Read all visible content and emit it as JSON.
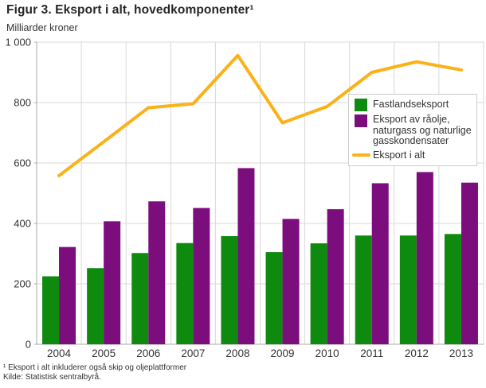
{
  "figure": {
    "title": "Figur 3. Eksport i alt, hovedkomponenter¹",
    "unit_label": "Milliarder kroner",
    "footnote": "¹ Eksport i alt inkluderer også skip og oljeplattformer",
    "source": "Kilde: Statistisk sentralbyrå."
  },
  "legend": {
    "items": [
      {
        "label": "Fastlandseksport",
        "color": "#0e8b0e",
        "swatch": "square"
      },
      {
        "label": "Eksport av råolje, naturgass og naturlige gasskondensater",
        "lines": [
          "Eksport av råolje,",
          "naturgass og naturlige",
          "gasskondensater"
        ],
        "color": "#7c0d7c",
        "swatch": "square"
      },
      {
        "label": "Eksport i alt",
        "color": "#fbb117",
        "swatch": "line"
      }
    ]
  },
  "chart_data": {
    "type": "bar",
    "title": "Figur 3. Eksport i alt, hovedkomponenter¹",
    "xlabel": "",
    "ylabel": "Milliarder kroner",
    "categories": [
      "2004",
      "2005",
      "2006",
      "2007",
      "2008",
      "2009",
      "2010",
      "2011",
      "2012",
      "2013"
    ],
    "series": [
      {
        "name": "Fastlandseksport",
        "type": "bar",
        "color": "#0e8b0e",
        "values": [
          225,
          252,
          302,
          335,
          358,
          305,
          334,
          360,
          360,
          365
        ]
      },
      {
        "name": "Eksport av råolje, naturgass og naturlige gasskondensater",
        "type": "bar",
        "color": "#7c0d7c",
        "values": [
          322,
          407,
          473,
          451,
          583,
          415,
          447,
          533,
          570,
          535
        ]
      },
      {
        "name": "Eksport i alt",
        "type": "line",
        "color": "#fbb117",
        "values": [
          558,
          670,
          783,
          796,
          956,
          733,
          787,
          900,
          935,
          908
        ]
      }
    ],
    "ylim": [
      0,
      1000
    ],
    "y_ticks": {
      "values": [
        0,
        200,
        400,
        600,
        800,
        1000
      ],
      "labels": [
        "0",
        "200",
        "400",
        "600",
        "800",
        "1 000"
      ]
    },
    "grid": true,
    "legend_position": "inset upper right"
  },
  "colors": {
    "grid": "#d9d9d9",
    "axis": "#a9a9a9",
    "tick_text": "#333333"
  }
}
